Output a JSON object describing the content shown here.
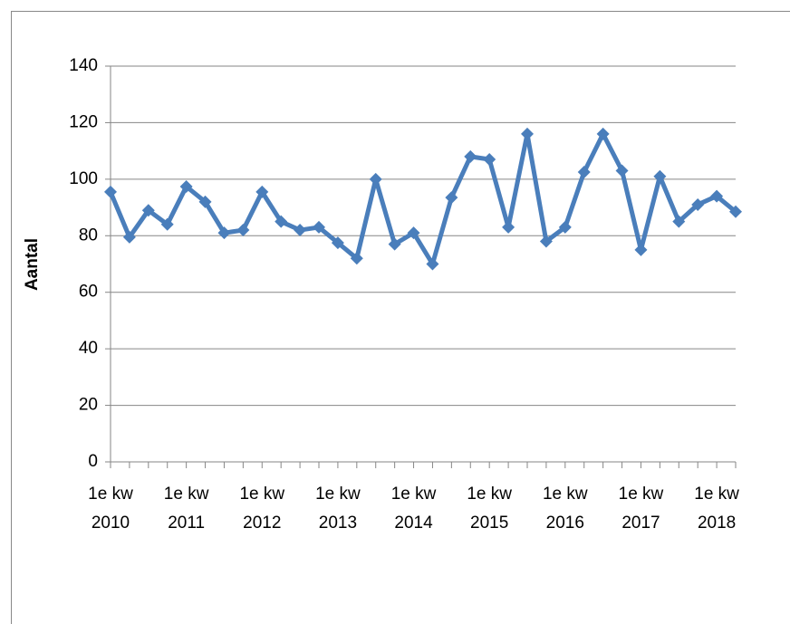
{
  "chart_data": {
    "type": "line",
    "y_label": "Aantal",
    "categories": [
      "1e kw 2010",
      null,
      null,
      null,
      "1e kw 2011",
      null,
      null,
      null,
      "1e kw 2012",
      null,
      null,
      null,
      "1e kw 2013",
      null,
      null,
      null,
      "1e kw 2014",
      null,
      null,
      null,
      "1e kw 2015",
      null,
      null,
      null,
      "1e kw 2016",
      null,
      null,
      null,
      "1e kw 2017",
      null,
      null,
      null,
      "1e kw 2018",
      null
    ],
    "series": [
      {
        "name": "Aantal",
        "color": "#4a7ebb",
        "values": [
          95.5,
          79.5,
          89,
          84,
          97.4,
          92,
          81,
          82,
          95.5,
          85,
          82,
          83,
          77.5,
          72,
          100,
          77,
          81,
          70,
          93.5,
          108,
          107,
          83,
          116,
          78,
          83,
          102.5,
          116,
          103,
          75,
          101,
          85,
          91,
          94,
          88.5
        ]
      }
    ],
    "ylim": [
      0,
      140
    ],
    "yticks": [
      0,
      20,
      40,
      60,
      80,
      100,
      120,
      140
    ],
    "grid": true
  }
}
